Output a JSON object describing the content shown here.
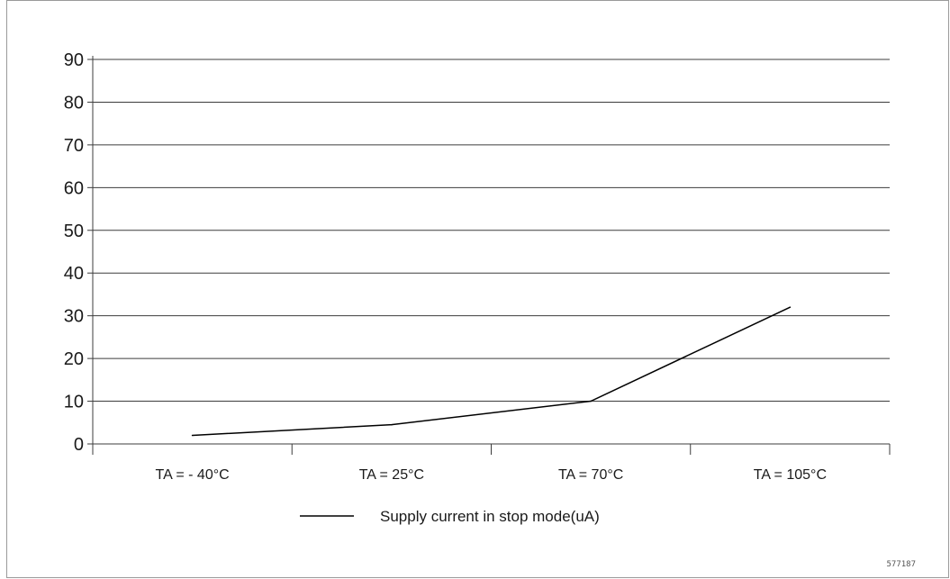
{
  "chart_data": {
    "type": "line",
    "categories": [
      "TA = - 40°C",
      "TA = 25°C",
      "TA = 70°C",
      "TA = 105°C"
    ],
    "series": [
      {
        "name": "Supply current in stop mode(uA)",
        "values": [
          2,
          4.5,
          10,
          32
        ],
        "color": "#000000"
      }
    ],
    "title": "",
    "xlabel": "",
    "ylabel": "",
    "ylim": [
      0,
      90
    ],
    "yticks": [
      0,
      10,
      20,
      30,
      40,
      50,
      60,
      70,
      80,
      90
    ],
    "grid": true,
    "legend_position": "bottom-center"
  },
  "figure_id": "577187",
  "colors": {
    "grid": "#3c3c3c",
    "axis": "#3c3c3c",
    "frame": "#9a9a9a",
    "line": "#000000"
  }
}
